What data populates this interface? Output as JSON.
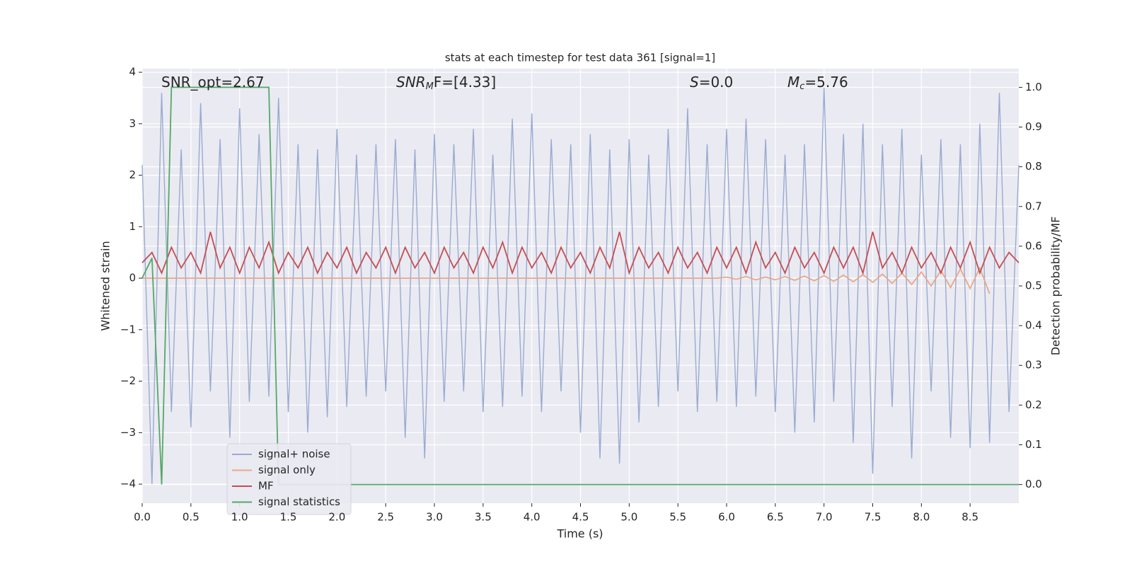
{
  "chart_data": {
    "type": "line",
    "title": "stats at each timestep for test data 361 [signal=1]",
    "x_label": "Time (s)",
    "y_label": "Whitened strain",
    "y2_label": "Detection probability/MF",
    "annotations": [
      {
        "text": "SNR_opt=2.67"
      },
      {
        "text": "SNR",
        "sub": "M",
        "rest": "F=[4.33]"
      },
      {
        "text": "S",
        "rest": "=0.0"
      },
      {
        "text": "M",
        "sub": "c",
        "rest": "=5.76"
      }
    ],
    "grid": true,
    "legend": "lower left",
    "xlim": [
      0,
      9.0
    ],
    "ylim": [
      -4.37,
      4.07
    ],
    "y2lim": [
      -0.047,
      1.047
    ],
    "xticks": [
      {
        "value": 0,
        "label": "0.0"
      },
      0.5,
      {
        "value": 1,
        "label": "1.0"
      },
      1.5,
      {
        "value": 2,
        "label": "2.0"
      },
      2.5,
      {
        "value": 3,
        "label": "3.0"
      },
      3.5,
      {
        "value": 4,
        "label": "4.0"
      },
      4.5,
      {
        "value": 5,
        "label": "5.0"
      },
      5.5,
      {
        "value": 6,
        "label": "6.0"
      },
      6.5,
      {
        "value": 7,
        "label": "7.0"
      },
      7.5,
      {
        "value": 8,
        "label": "8.0"
      },
      8.5
    ],
    "yticks": [
      {
        "value": -4,
        "label": "−4"
      },
      {
        "value": -3,
        "label": "−3"
      },
      {
        "value": -2,
        "label": "−2"
      },
      {
        "value": -1,
        "label": "−1"
      },
      0,
      1,
      2,
      3,
      4
    ],
    "y2ticks": [
      {
        "value": 0,
        "label": "0.0"
      },
      0.1,
      0.2,
      0.3,
      0.4,
      0.5,
      0.6,
      0.7,
      0.8,
      0.9,
      {
        "value": 1,
        "label": "1.0"
      }
    ],
    "x": [
      0,
      0.1,
      0.2,
      0.3,
      0.4,
      0.5,
      0.6,
      0.7,
      0.8,
      0.9,
      1.0,
      1.1,
      1.2,
      1.3,
      1.4,
      1.5,
      1.6,
      1.7,
      1.8,
      1.9,
      2.0,
      2.1,
      2.2,
      2.3,
      2.4,
      2.5,
      2.6,
      2.7,
      2.8,
      2.9,
      3.0,
      3.1,
      3.2,
      3.3,
      3.4,
      3.5,
      3.6,
      3.7,
      3.8,
      3.9,
      4.0,
      4.1,
      4.2,
      4.3,
      4.4,
      4.5,
      4.6,
      4.7,
      4.8,
      4.9,
      5.0,
      5.1,
      5.2,
      5.3,
      5.4,
      5.5,
      5.6,
      5.7,
      5.8,
      5.9,
      6.0,
      6.1,
      6.2,
      6.3,
      6.4,
      6.5,
      6.6,
      6.7,
      6.8,
      6.9,
      7.0,
      7.1,
      7.2,
      7.3,
      7.4,
      7.5,
      7.6,
      7.7,
      7.8,
      7.9,
      8.0,
      8.1,
      8.2,
      8.3,
      8.4,
      8.5,
      8.6,
      8.7,
      8.8,
      8.9,
      9.0
    ],
    "series": [
      {
        "name": "signal+ noise",
        "color": "#9aabd0",
        "values": [
          2.2,
          -4.0,
          3.6,
          -2.6,
          2.5,
          -2.9,
          3.4,
          -2.2,
          2.7,
          -3.1,
          3.3,
          -2.4,
          2.8,
          -2.3,
          3.5,
          -2.6,
          2.6,
          -3.0,
          2.5,
          -2.7,
          2.9,
          -2.5,
          2.4,
          -2.3,
          2.6,
          -2.2,
          2.7,
          -3.1,
          2.5,
          -3.5,
          2.8,
          -2.4,
          2.6,
          -2.2,
          2.9,
          -2.6,
          2.4,
          -2.5,
          3.1,
          -2.3,
          3.2,
          -2.6,
          2.7,
          -2.2,
          2.6,
          -3.0,
          2.8,
          -3.5,
          2.5,
          -3.6,
          2.7,
          -2.8,
          2.4,
          -2.5,
          2.9,
          -2.2,
          3.3,
          -2.6,
          2.6,
          -2.4,
          2.9,
          -2.5,
          3.1,
          -2.3,
          2.7,
          -2.6,
          2.4,
          -3.0,
          2.6,
          -2.8,
          3.7,
          -2.4,
          2.8,
          -3.2,
          3.0,
          -3.8,
          2.6,
          -2.5,
          2.9,
          -3.5,
          2.4,
          -2.2,
          2.7,
          -3.1,
          2.6,
          -3.3,
          3.0,
          -3.2,
          3.6,
          -2.6,
          2.2
        ]
      },
      {
        "name": "signal only",
        "color": "#e8a888",
        "values": [
          0,
          0,
          0,
          0,
          0,
          0,
          0,
          0,
          0,
          0,
          0,
          0,
          0,
          0,
          0,
          0,
          0,
          0,
          0,
          0,
          0,
          0,
          0,
          0,
          0,
          0,
          0,
          0,
          0,
          0,
          0,
          0,
          0,
          0,
          0,
          0,
          0,
          0,
          0,
          0,
          0,
          0,
          0,
          0,
          0,
          0,
          0,
          0,
          0,
          0,
          0,
          0,
          0,
          0,
          0,
          0,
          0,
          0,
          0,
          0,
          0.02,
          -0.02,
          0.03,
          -0.03,
          0.02,
          -0.03,
          0.03,
          -0.04,
          0.04,
          -0.05,
          0.05,
          -0.06,
          0.06,
          -0.07,
          0.07,
          -0.08,
          0.08,
          -0.1,
          0.1,
          -0.12,
          0.12,
          -0.15,
          0.15,
          -0.18,
          0.18,
          -0.2,
          0.2,
          -0.3,
          null,
          null,
          null
        ]
      },
      {
        "name": "MF",
        "color": "#c44e52",
        "values": [
          0.3,
          0.5,
          0.1,
          0.6,
          0.2,
          0.5,
          0.1,
          0.9,
          0.2,
          0.6,
          0.1,
          0.6,
          0.2,
          0.7,
          0.1,
          0.5,
          0.2,
          0.6,
          0.1,
          0.5,
          0.2,
          0.6,
          0.1,
          0.5,
          0.2,
          0.6,
          0.1,
          0.6,
          0.2,
          0.5,
          0.1,
          0.6,
          0.2,
          0.5,
          0.1,
          0.6,
          0.2,
          0.7,
          0.1,
          0.6,
          0.2,
          0.5,
          0.1,
          0.6,
          0.2,
          0.5,
          0.1,
          0.6,
          0.2,
          0.9,
          0.1,
          0.6,
          0.2,
          0.5,
          0.1,
          0.6,
          0.2,
          0.5,
          0.1,
          0.6,
          0.2,
          0.6,
          0.1,
          0.7,
          0.2,
          0.5,
          0.1,
          0.6,
          0.2,
          0.5,
          0.1,
          0.6,
          0.2,
          0.6,
          0.1,
          0.9,
          0.2,
          0.5,
          0.1,
          0.6,
          0.2,
          0.5,
          0.1,
          0.6,
          0.2,
          0.7,
          0.1,
          0.6,
          0.2,
          0.5,
          0.3
        ]
      },
      {
        "name": "signal statistics",
        "color": "#55a868",
        "axis": "y2",
        "values": [
          0.52,
          0.57,
          0,
          1,
          1,
          1,
          1,
          1,
          1,
          1,
          1,
          1,
          1,
          1,
          0,
          0,
          0,
          0,
          0,
          0,
          0,
          0,
          0,
          0,
          0,
          0,
          0,
          0,
          0,
          0,
          0,
          0,
          0,
          0,
          0,
          0,
          0,
          0,
          0,
          0,
          0,
          0,
          0,
          0,
          0,
          0,
          0,
          0,
          0,
          0,
          0,
          0,
          0,
          0,
          0,
          0,
          0,
          0,
          0,
          0,
          0,
          0,
          0,
          0,
          0,
          0,
          0,
          0,
          0,
          0,
          0,
          0,
          0,
          0,
          0,
          0,
          0,
          0,
          0,
          0,
          0,
          0,
          0,
          0,
          0,
          0,
          0,
          0,
          0,
          0,
          0
        ]
      }
    ]
  }
}
